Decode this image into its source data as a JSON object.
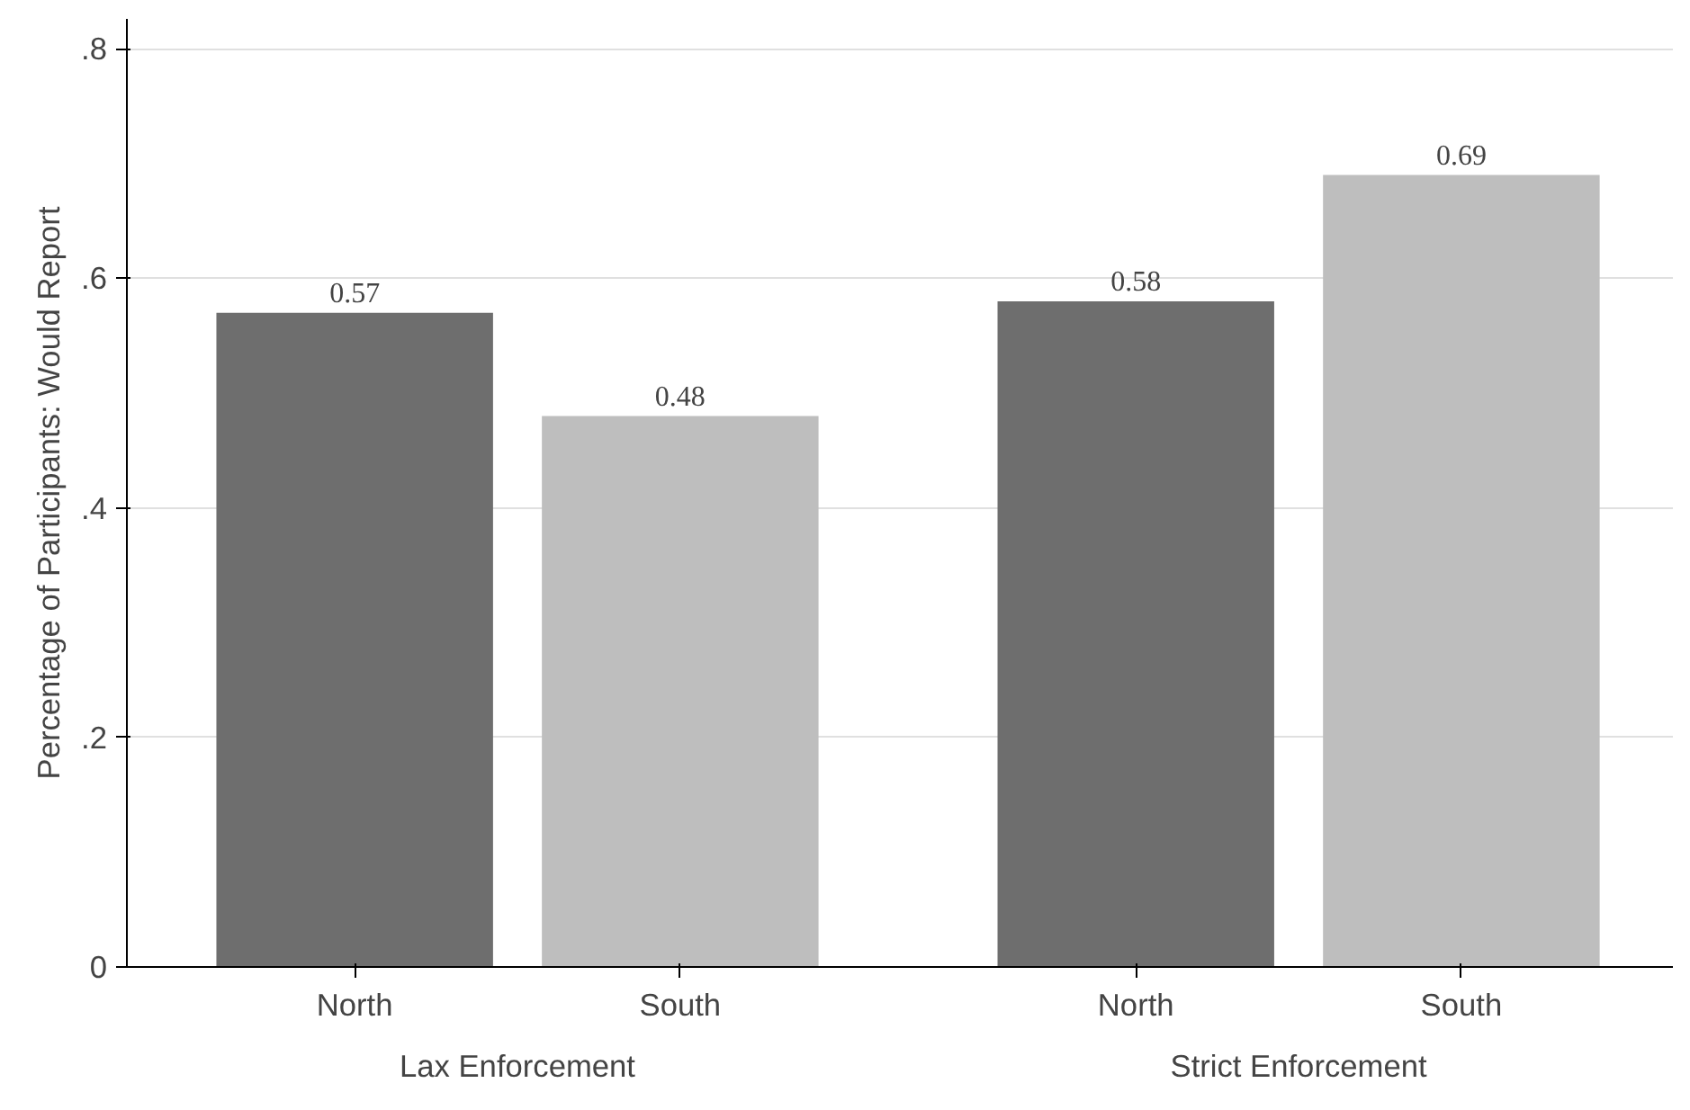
{
  "chart_data": {
    "type": "bar",
    "ylabel": "Percentage of Participants: Would Report",
    "categories": [
      "North",
      "South",
      "North",
      "South"
    ],
    "values": [
      0.57,
      0.48,
      0.58,
      0.69
    ],
    "colors": [
      "#6e6e6e",
      "#bebebe",
      "#6e6e6e",
      "#bebebe"
    ],
    "data_labels": true,
    "annotations": [
      "Lax Enforcement",
      "Strict Enforcement"
    ],
    "ylim": [
      0,
      0.826
    ],
    "yticks": [
      0,
      {
        "value": 0.2,
        "label": ".2"
      },
      {
        "value": 0.4,
        "label": ".4"
      },
      {
        "value": 0.6,
        "label": ".6"
      },
      {
        "value": 0.8,
        "label": ".8"
      }
    ],
    "grid": "y"
  }
}
